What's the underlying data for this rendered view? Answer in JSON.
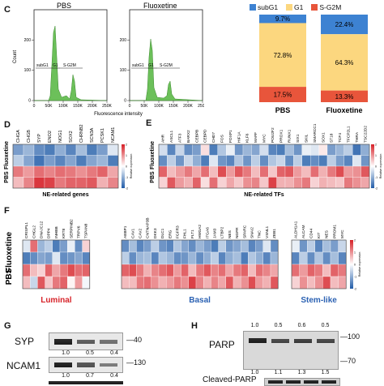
{
  "colors": {
    "subG1": "#3d82d2",
    "G1": "#fcd77f",
    "SG2M": "#e8553b",
    "hist": "#6cc05a",
    "hot": "#d7242a",
    "cold": "#2c62b3"
  },
  "panel_c": {
    "label": "C",
    "pbs_title": "PBS",
    "flu_title": "Fluoxetine",
    "ylabel": "Count",
    "xlabel": "Fluorescence intensity",
    "gates": [
      "subG1",
      "G1",
      "S-G2M"
    ],
    "xticks": [
      "0",
      "50K",
      "100K",
      "150K",
      "200K",
      "250K"
    ],
    "yticks": [
      "0",
      "100",
      "200"
    ]
  },
  "panel_c_bar": {
    "legend": [
      {
        "name": "subG1",
        "color_key": "subG1"
      },
      {
        "name": "G1",
        "color_key": "G1"
      },
      {
        "name": "S-G2M",
        "color_key": "SG2M"
      }
    ],
    "bars": [
      {
        "name": "PBS",
        "subG1": 9.7,
        "G1": 72.8,
        "SG2M": 17.5,
        "labels": [
          "9.7%",
          "72.8%",
          "17.5%"
        ]
      },
      {
        "name": "Fluoxetine",
        "subG1": 22.4,
        "G1": 64.3,
        "SG2M": 13.3,
        "labels": [
          "22.4%",
          "64.3%",
          "13.3%"
        ]
      }
    ]
  },
  "panel_d": {
    "label": "D",
    "genes": [
      "CHGA",
      "CHGB",
      "SYP",
      "ENO2",
      "NOG1",
      "SOX2",
      "CHRNB2",
      "SCN3A",
      "PCSK1",
      "NCAM1"
    ],
    "rows": [
      "Fluoxetine",
      "PBS"
    ],
    "xlabel": "NE-related genes",
    "scale_ticks": [
      "2",
      "1",
      "0",
      "-1",
      "-2"
    ],
    "scale_label": "Relative expression",
    "values": [
      [
        -1.2,
        -0.9,
        -1.4,
        -1.6,
        -1.0,
        -1.5,
        -0.8,
        -1.6,
        -1.2,
        -0.3
      ],
      [
        -0.6,
        -1.1,
        -1.7,
        -1.2,
        -1.5,
        -1.1,
        -1.6,
        -1.1,
        -0.9,
        -1.6
      ],
      [
        1.2,
        0.9,
        1.3,
        1.1,
        1.3,
        1.2,
        1.0,
        1.2,
        1.4,
        0.8
      ],
      [
        0.6,
        1.1,
        1.8,
        1.7,
        1.2,
        1.4,
        1.4,
        1.5,
        0.7,
        1.1
      ]
    ]
  },
  "panel_e": {
    "label": "E",
    "genes": [
      "AHR",
      "ASCL1",
      "ATF3",
      "BARX2",
      "CEBPB",
      "CEBPD",
      "CHD7",
      "FOS",
      "FOXP1",
      "HIF1A",
      "KLF6",
      "MAFF",
      "MYC",
      "POU2F2",
      "PROX1",
      "RUNX1",
      "SIX1",
      "SKIL",
      "SMARCC1",
      "SOX1",
      "ST18",
      "TCF4",
      "TFCP2L1",
      "THRA",
      "TSC22D2"
    ],
    "rows": [
      "Fluoxetine",
      "PBS"
    ],
    "xlabel": "NE-related TFs",
    "scale_ticks": [
      "2",
      "1",
      "0",
      "-1",
      "-2"
    ],
    "scale_label": "Relative expression",
    "values": [
      [
        -0.4,
        -1.5,
        -0.5,
        -1.4,
        -1.2,
        0.3,
        -1.6,
        -0.7,
        -0.2,
        -1.3,
        -0.9,
        -1.1,
        -0.4,
        -1.5,
        -1.6,
        -0.8,
        -1.3,
        -0.2,
        -0.3,
        0.2,
        -1.2,
        -0.9,
        -0.6,
        -1.7,
        -1.0
      ],
      [
        -1.4,
        -0.6,
        -1.3,
        -0.5,
        -1.0,
        -1.6,
        -0.3,
        -1.3,
        -1.5,
        -0.7,
        -1.3,
        -0.6,
        -1.4,
        -0.7,
        -0.5,
        -1.4,
        -0.6,
        -1.6,
        -1.4,
        -1.6,
        -0.6,
        -1.2,
        -1.5,
        -0.3,
        -1.3
      ],
      [
        1.4,
        0.6,
        0.9,
        1.2,
        0.8,
        1.3,
        0.6,
        1.6,
        0.9,
        1.5,
        1.2,
        0.6,
        1.3,
        0.5,
        1.4,
        1.5,
        0.9,
        0.6,
        1.3,
        0.7,
        1.2,
        1.6,
        0.9,
        1.0,
        1.5
      ],
      [
        0.4,
        1.5,
        0.9,
        0.7,
        1.4,
        0.3,
        1.3,
        0.4,
        0.8,
        0.5,
        1.0,
        1.1,
        0.5,
        1.7,
        0.7,
        0.7,
        1.0,
        1.2,
        0.4,
        0.7,
        0.6,
        0.5,
        1.2,
        1.0,
        0.8
      ]
    ]
  },
  "panel_f": {
    "label": "F",
    "rows": [
      "Fluoxetine",
      "PBS"
    ],
    "scale_ticks": [
      "2",
      "1",
      "0",
      "-1",
      "-2"
    ],
    "scale_label": "Relative expression",
    "groups": [
      {
        "name": "Luminal",
        "color": "#d7242a",
        "genes": [
          "CRISPL1",
          "CHGL2",
          "DNAJC12",
          "DPP4",
          "INHBB",
          "KRT8",
          "SERPINB2",
          "TRPV6",
          "TSPAN8"
        ],
        "values": [
          [
            -0.3,
            1.3,
            -0.9,
            -0.6,
            -1.6,
            -1.2,
            -0.2,
            -1.4,
            0.4
          ],
          [
            -1.6,
            -1.4,
            -1.1,
            -1.2,
            -0.3,
            -1.4,
            -1.3,
            -1.1,
            -1.5
          ],
          [
            1.3,
            0.6,
            0.4,
            1.4,
            0.8,
            1.2,
            1.6,
            1.3,
            1.4
          ],
          [
            0.6,
            -0.5,
            1.5,
            0.5,
            1.2,
            1.4,
            0.1,
            0.9,
            -0.1
          ]
        ]
      },
      {
        "name": "Basal",
        "color": "#2c62b3",
        "genes": [
          "AEBP1",
          "CAV1",
          "CAV2",
          "CNTNAP3B",
          "DKK3",
          "DLC1",
          "ERG",
          "FGFR3",
          "FHL1",
          "FLT1",
          "HMGA2",
          "ITGA6",
          "JAM3",
          "LTBP2",
          "NES",
          "NGFR",
          "SPARC",
          "SNAI2",
          "TNC",
          "VSNL1",
          "ZEB1"
        ],
        "values": [
          [
            -1.4,
            -0.8,
            -1.5,
            -1.2,
            -0.6,
            -1.3,
            -1.5,
            -0.7,
            -1.1,
            -1.4,
            -0.9,
            -1.2,
            -1.6,
            -0.6,
            -1.3,
            -1.1,
            -0.8,
            -1.5,
            -1.2,
            -0.3,
            -1.4
          ],
          [
            -0.6,
            -1.4,
            -0.9,
            -0.8,
            -1.5,
            -0.7,
            -0.9,
            -1.4,
            -1.3,
            -0.9,
            -1.4,
            -1.0,
            -0.6,
            -1.5,
            -1.0,
            -0.8,
            -1.6,
            -0.7,
            -1.0,
            -1.5,
            -0.9
          ],
          [
            1.4,
            1.6,
            1.2,
            0.7,
            1.1,
            1.3,
            1.5,
            0.9,
            1.4,
            0.6,
            1.2,
            1.5,
            1.1,
            1.3,
            0.8,
            1.2,
            1.4,
            0.6,
            1.3,
            1.1,
            0.8
          ],
          [
            0.6,
            0.6,
            1.2,
            1.3,
            1.0,
            0.7,
            0.9,
            1.2,
            1.0,
            1.7,
            1.1,
            0.7,
            1.1,
            0.8,
            1.5,
            0.7,
            1.0,
            1.6,
            0.9,
            0.7,
            1.5
          ]
        ]
      },
      {
        "name": "Stem-like",
        "color": "#2c62b3",
        "genes": [
          "ALDH1A1",
          "ALCAM",
          "CD44",
          "KIT",
          "NES",
          "PROM1",
          "MYC"
        ],
        "values": [
          [
            -0.2,
            -1.3,
            -0.6,
            -1.5,
            -0.8,
            -1.2,
            -0.5
          ],
          [
            -1.5,
            -0.6,
            -1.4,
            -0.7,
            -1.4,
            -0.8,
            -1.5
          ],
          [
            1.3,
            0.9,
            1.4,
            1.2,
            0.6,
            1.4,
            1.2
          ],
          [
            0.4,
            1.0,
            0.6,
            1.0,
            1.6,
            0.6,
            0.8
          ]
        ]
      }
    ]
  },
  "panel_g": {
    "label": "G",
    "proteins": [
      {
        "name": "SYP",
        "mw": "40",
        "quant": [
          "1.0",
          "0.5",
          "0.4"
        ]
      },
      {
        "name": "NCAM1",
        "mw": "130",
        "quant": [
          "1.0",
          "0.7",
          "0.4"
        ]
      }
    ]
  },
  "panel_h": {
    "label": "H",
    "proteins": [
      {
        "name": "PARP",
        "quant": [
          "1.0",
          "0.5",
          "0.6",
          "0.5"
        ],
        "mw": [
          "100",
          "70"
        ]
      },
      {
        "name": "Cleaved-PARP",
        "quant": [
          "1.0",
          "1.1",
          "1.3",
          "1.5"
        ]
      }
    ]
  }
}
